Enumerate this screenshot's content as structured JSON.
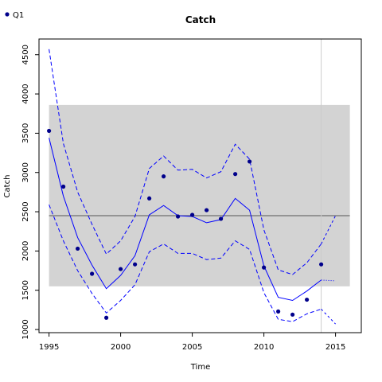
{
  "chart_data": {
    "type": "line",
    "title": "Catch",
    "xlabel": "Time",
    "ylabel": "Catch",
    "xlim": [
      1994.3,
      2016.8
    ],
    "ylim": [
      960,
      4700
    ],
    "x_ticks": [
      1995,
      2000,
      2005,
      2010,
      2015
    ],
    "y_ticks": [
      1000,
      1500,
      2000,
      2500,
      3000,
      3500,
      4000,
      4500
    ],
    "reference_band": {
      "lower": 1550,
      "upper": 3860,
      "x_start": 1995,
      "x_end": 2016,
      "color": "#d3d3d3"
    },
    "reference_line": {
      "value": 2450,
      "color": "#555555"
    },
    "vertical_marker": {
      "x": 2014,
      "color": "#cccccc"
    },
    "series": [
      {
        "name": "Q1",
        "kind": "observed",
        "color": "#00008b",
        "x": [
          1995,
          1996,
          1997,
          1998,
          1999,
          2000,
          2001,
          2002,
          2003,
          2004,
          2005,
          2006,
          2007,
          2008,
          2009,
          2010,
          2011,
          2012,
          2013,
          2014
        ],
        "values": [
          3530,
          2820,
          2030,
          1710,
          1150,
          1770,
          1830,
          2670,
          2950,
          2440,
          2460,
          2520,
          2410,
          2980,
          3140,
          1790,
          1230,
          1190,
          1380,
          1830
        ]
      },
      {
        "kind": "estimate",
        "color": "#0000ff",
        "x": [
          1995,
          1996,
          1997,
          1998,
          1999,
          2000,
          2001,
          2002,
          2003,
          2004,
          2005,
          2006,
          2007,
          2008,
          2009,
          2010,
          2011,
          2012,
          2013,
          2014
        ],
        "values": [
          3440,
          2700,
          2170,
          1820,
          1520,
          1690,
          1940,
          2460,
          2580,
          2450,
          2440,
          2360,
          2400,
          2670,
          2520,
          1810,
          1410,
          1370,
          1490,
          1630
        ]
      },
      {
        "kind": "upper-ci",
        "color": "#0000ff",
        "x": [
          1995,
          1996,
          1997,
          1998,
          1999,
          2000,
          2001,
          2002,
          2003,
          2004,
          2005,
          2006,
          2007,
          2008,
          2009,
          2010,
          2011,
          2012,
          2013,
          2014
        ],
        "values": [
          4570,
          3370,
          2750,
          2340,
          1960,
          2130,
          2440,
          3050,
          3210,
          3030,
          3040,
          2930,
          3010,
          3360,
          3170,
          2270,
          1760,
          1700,
          1850,
          2090
        ]
      },
      {
        "kind": "lower-ci",
        "color": "#0000ff",
        "x": [
          1995,
          1996,
          1997,
          1998,
          1999,
          2000,
          2001,
          2002,
          2003,
          2004,
          2005,
          2006,
          2007,
          2008,
          2009,
          2010,
          2011,
          2012,
          2013,
          2014
        ],
        "values": [
          2590,
          2130,
          1750,
          1460,
          1210,
          1370,
          1570,
          1990,
          2090,
          1970,
          1970,
          1890,
          1910,
          2130,
          2020,
          1470,
          1130,
          1100,
          1200,
          1260
        ]
      },
      {
        "kind": "forecast-estimate",
        "color": "#0000ff",
        "x": [
          2014,
          2015
        ],
        "values": [
          1630,
          1620
        ]
      },
      {
        "kind": "forecast-upper",
        "color": "#0000ff",
        "x": [
          2014,
          2015
        ],
        "values": [
          2090,
          2450
        ]
      },
      {
        "kind": "forecast-lower",
        "color": "#0000ff",
        "x": [
          2014,
          2015
        ],
        "values": [
          1260,
          1070
        ]
      }
    ],
    "legend": {
      "position": "top-left",
      "entries": [
        {
          "label": "Q1",
          "color": "#00008b"
        }
      ]
    },
    "grid": false
  }
}
